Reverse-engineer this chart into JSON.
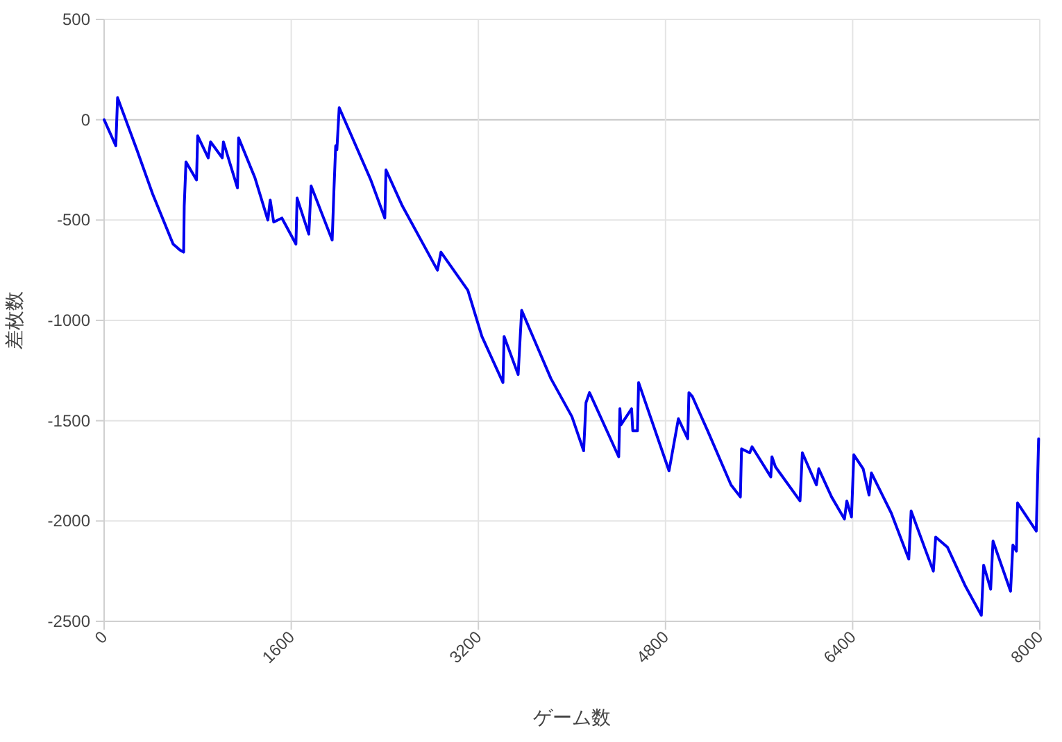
{
  "chart_data": {
    "type": "line",
    "xlabel": "ゲーム数",
    "ylabel": "差枚数",
    "xlim": [
      0,
      8000
    ],
    "xticks": [
      0,
      1600,
      3200,
      4800,
      6400,
      8000
    ],
    "ylim": [
      -2500,
      500
    ],
    "yticks": [
      -2500,
      -2000,
      -1500,
      -1000,
      -500,
      0,
      500
    ],
    "grid": true,
    "marker": "none",
    "line_style": "solid",
    "series": [
      {
        "color": "#0000ee",
        "x": [
          0,
          100,
          115,
          280,
          415,
          590,
          650,
          680,
          685,
          700,
          790,
          800,
          890,
          910,
          1010,
          1020,
          1140,
          1150,
          1290,
          1400,
          1420,
          1450,
          1520,
          1640,
          1650,
          1750,
          1770,
          1950,
          1965,
          1980,
          1990,
          2010,
          2280,
          2400,
          2410,
          2550,
          2850,
          2880,
          3110,
          3230,
          3410,
          3420,
          3540,
          3570,
          3820,
          4000,
          4100,
          4120,
          4150,
          4400,
          4410,
          4420,
          4510,
          4520,
          4560,
          4570,
          4830,
          4910,
          4990,
          5000,
          5030,
          5160,
          5360,
          5440,
          5450,
          5520,
          5540,
          5700,
          5710,
          5740,
          5950,
          5970,
          6090,
          6110,
          6220,
          6330,
          6350,
          6390,
          6410,
          6490,
          6540,
          6560,
          6730,
          6880,
          6900,
          7020,
          7090,
          7110,
          7210,
          7360,
          7500,
          7520,
          7580,
          7600,
          7750,
          7770,
          7800,
          7810,
          7970,
          7980,
          7990
        ],
        "values": [
          0,
          -130,
          110,
          -150,
          -370,
          -620,
          -650,
          -660,
          -430,
          -210,
          -300,
          -80,
          -190,
          -110,
          -190,
          -110,
          -340,
          -90,
          -290,
          -500,
          -400,
          -510,
          -490,
          -620,
          -390,
          -570,
          -330,
          -600,
          -350,
          -130,
          -150,
          60,
          -300,
          -490,
          -250,
          -430,
          -750,
          -660,
          -850,
          -1080,
          -1310,
          -1080,
          -1270,
          -950,
          -1290,
          -1480,
          -1650,
          -1410,
          -1360,
          -1680,
          -1440,
          -1520,
          -1440,
          -1550,
          -1550,
          -1310,
          -1750,
          -1490,
          -1590,
          -1360,
          -1380,
          -1550,
          -1820,
          -1880,
          -1640,
          -1660,
          -1630,
          -1780,
          -1680,
          -1730,
          -1900,
          -1660,
          -1820,
          -1740,
          -1880,
          -1990,
          -1900,
          -1980,
          -1670,
          -1740,
          -1870,
          -1760,
          -1960,
          -2190,
          -1950,
          -2140,
          -2250,
          -2080,
          -2130,
          -2320,
          -2470,
          -2220,
          -2340,
          -2100,
          -2350,
          -2120,
          -2150,
          -1910,
          -2050,
          -1820,
          -1590
        ]
      }
    ]
  }
}
